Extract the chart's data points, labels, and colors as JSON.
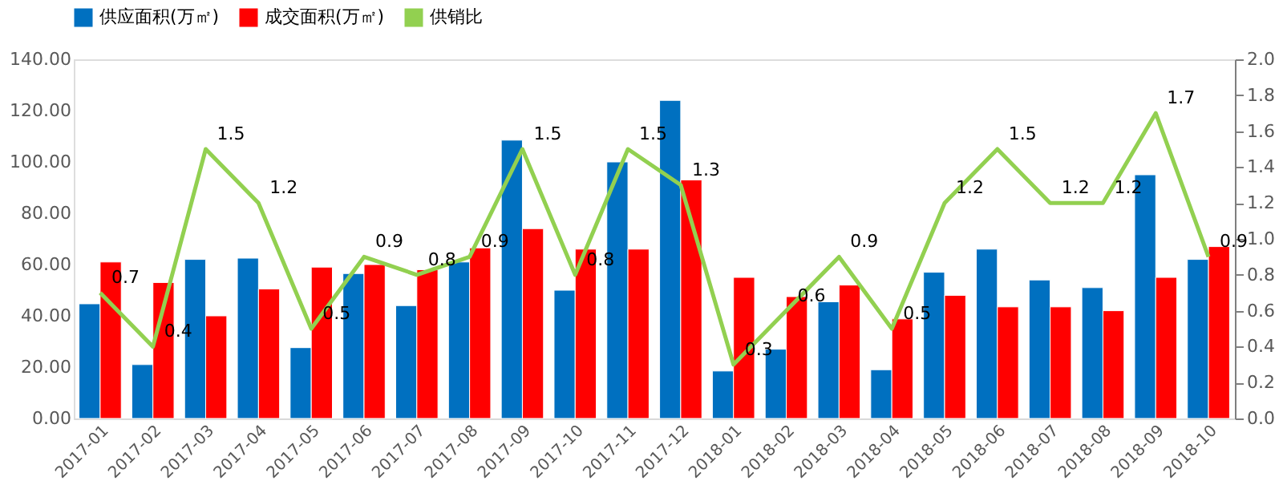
{
  "chart_data": {
    "type": "bar",
    "categories": [
      "2017-01",
      "2017-02",
      "2017-03",
      "2017-04",
      "2017-05",
      "2017-06",
      "2017-07",
      "2017-08",
      "2017-09",
      "2017-10",
      "2017-11",
      "2017-12",
      "2018-01",
      "2018-02",
      "2018-03",
      "2018-04",
      "2018-05",
      "2018-06",
      "2018-07",
      "2018-08",
      "2018-09",
      "2018-10"
    ],
    "series": [
      {
        "name": "供应面积(万㎡)",
        "color": "#0070c0",
        "values": [
          44.7,
          21,
          62,
          62.5,
          27.6,
          56.5,
          44,
          61,
          108.5,
          50,
          100,
          124,
          18.5,
          27,
          45.5,
          19,
          57,
          66,
          54,
          51,
          95,
          62
        ]
      },
      {
        "name": "成交面积(万㎡)",
        "color": "#ff0000",
        "values": [
          61,
          53,
          40,
          50.5,
          59,
          60,
          58,
          66.5,
          74,
          66,
          66,
          93,
          55,
          47.5,
          52,
          38.8,
          48,
          43.5,
          43.5,
          42,
          55,
          67
        ]
      },
      {
        "name": "供销比",
        "type": "line",
        "axis": "y2",
        "color": "#92d050",
        "data_labels": true,
        "values": [
          0.7,
          0.4,
          1.5,
          1.2,
          0.5,
          0.9,
          0.8,
          0.9,
          1.5,
          0.8,
          1.5,
          1.3,
          0.3,
          0.6,
          0.9,
          0.5,
          1.2,
          1.5,
          1.2,
          1.2,
          1.7,
          0.9
        ]
      }
    ],
    "ylim": [
      0,
      140
    ],
    "yticks": [
      {
        "value": 0,
        "label": "0.00"
      },
      {
        "value": 20,
        "label": "20.00"
      },
      {
        "value": 40,
        "label": "40.00"
      },
      {
        "value": 60,
        "label": "60.00"
      },
      {
        "value": 80,
        "label": "80.00"
      },
      {
        "value": 100,
        "label": "100.00"
      },
      {
        "value": 120,
        "label": "120.00"
      },
      {
        "value": 140,
        "label": "140.00"
      }
    ],
    "y2lim": [
      0,
      2
    ],
    "y2ticks": [
      {
        "value": 0,
        "label": "0.0"
      },
      {
        "value": 0.2,
        "label": "0.2"
      },
      {
        "value": 0.4,
        "label": "0.4"
      },
      {
        "value": 0.6,
        "label": "0.6"
      },
      {
        "value": 0.8,
        "label": "0.8"
      },
      {
        "value": 1.0,
        "label": "1.0"
      },
      {
        "value": 1.2,
        "label": "1.2"
      },
      {
        "value": 1.4,
        "label": "1.4"
      },
      {
        "value": 1.6,
        "label": "1.6"
      },
      {
        "value": 1.8,
        "label": "1.8"
      },
      {
        "value": 2.0,
        "label": "2.0"
      }
    ],
    "legend": "top",
    "grid": false
  }
}
